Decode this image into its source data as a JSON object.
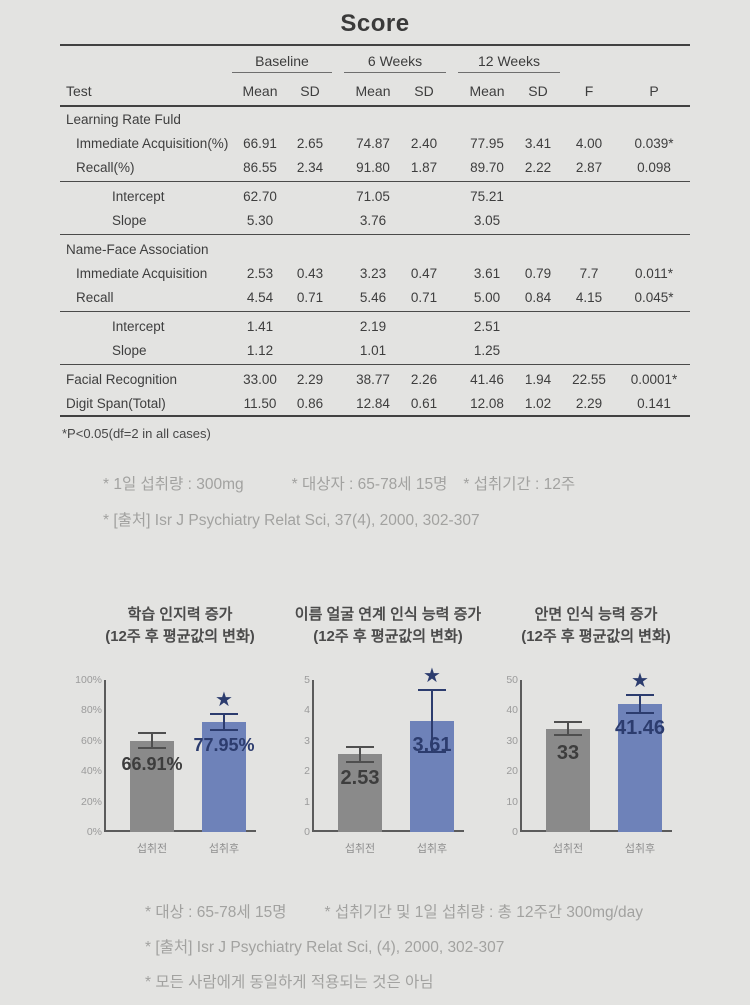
{
  "title": "Score",
  "colors": {
    "bar_gray": "#8a8a8a",
    "bar_blue": "#6e82b9",
    "navy": "#2c3c6e",
    "dark_gray": "#3d3d3d",
    "whisker_gray": "#4f4f4f"
  },
  "table": {
    "groups": [
      "Baseline",
      "6 Weeks",
      "12 Weeks"
    ],
    "headers": {
      "test": "Test",
      "mean": "Mean",
      "sd": "SD",
      "f": "F",
      "p": "P"
    },
    "footnote": "*P<0.05(df=2 in all cases)",
    "rows": [
      {
        "type": "section",
        "label": "Learning Rate Fuld"
      },
      {
        "type": "data",
        "label": "Immediate Acquisition(%)",
        "cells": [
          "66.91",
          "2.65",
          "74.87",
          "2.40",
          "77.95",
          "3.41",
          "4.00",
          "0.039*"
        ]
      },
      {
        "type": "data",
        "label": "Recall(%)",
        "cells": [
          "86.55",
          "2.34",
          "91.80",
          "1.87",
          "89.70",
          "2.22",
          "2.87",
          "0.098"
        ]
      },
      {
        "type": "rule"
      },
      {
        "type": "sub",
        "label": "Intercept",
        "cells": [
          "62.70",
          "",
          "71.05",
          "",
          "75.21",
          "",
          "",
          ""
        ]
      },
      {
        "type": "sub",
        "label": "Slope",
        "cells": [
          "5.30",
          "",
          "3.76",
          "",
          "3.05",
          "",
          "",
          ""
        ]
      },
      {
        "type": "rule"
      },
      {
        "type": "section",
        "label": "Name-Face Association"
      },
      {
        "type": "data",
        "label": "Immediate Acquisition",
        "cells": [
          "2.53",
          "0.43",
          "3.23",
          "0.47",
          "3.61",
          "0.79",
          "7.7",
          "0.011*"
        ]
      },
      {
        "type": "data",
        "label": "Recall",
        "cells": [
          "4.54",
          "0.71",
          "5.46",
          "0.71",
          "5.00",
          "0.84",
          "4.15",
          "0.045*"
        ]
      },
      {
        "type": "rule"
      },
      {
        "type": "sub",
        "label": "Intercept",
        "cells": [
          "1.41",
          "",
          "2.19",
          "",
          "2.51",
          "",
          "",
          ""
        ]
      },
      {
        "type": "sub",
        "label": "Slope",
        "cells": [
          "1.12",
          "",
          "1.01",
          "",
          "1.25",
          "",
          "",
          ""
        ]
      },
      {
        "type": "rule"
      },
      {
        "type": "data",
        "flush": true,
        "label": "Facial Recognition",
        "cells": [
          "33.00",
          "2.29",
          "38.77",
          "2.26",
          "41.46",
          "1.94",
          "22.55",
          "0.0001*"
        ]
      },
      {
        "type": "data",
        "flush": true,
        "label": "Digit Span(Total)",
        "cells": [
          "11.50",
          "0.86",
          "12.84",
          "0.61",
          "12.08",
          "1.02",
          "2.29",
          "0.141"
        ]
      }
    ]
  },
  "notes_mid": {
    "items": [
      "* 1일 섭취량 : 300mg",
      "* 대상자 : 65-78세 15명",
      "* 섭취기간 : 12주"
    ],
    "source": "* [출처] Isr J Psychiatry Relat Sci, 37(4), 2000, 302-307"
  },
  "notes_bottom": {
    "line1_items": [
      "* 대상 : 65-78세 15명",
      "* 섭취기간 및 1일 섭취량 : 총 12주간 300mg/day"
    ],
    "lines": [
      "* [출처] Isr J Psychiatry Relat Sci, (4), 2000, 302-307",
      "* 모든 사람에게 동일하게 적용되는 것은 아님"
    ]
  },
  "chart_data": [
    {
      "type": "bar",
      "title": "학습 인지력 증가",
      "subtitle": "(12주 후 평균값의 변화)",
      "categories": [
        "섭취전",
        "섭취후"
      ],
      "values": [
        66.91,
        77.95
      ],
      "value_labels": [
        "66.91%",
        "77.95%"
      ],
      "errors": [
        5.5,
        6
      ],
      "ylim": [
        0,
        100
      ],
      "ytick_labels": [
        "0%",
        "20%",
        "40%",
        "60%",
        "80%",
        "100%"
      ],
      "bar_colors": [
        "#8a8a8a",
        "#6e82b9"
      ],
      "whisker_colors": [
        "#4f4f4f",
        "#2c3c6e"
      ],
      "label_colors": [
        "#3d3d3d",
        "#2c3c6e"
      ],
      "star_on": [
        false,
        true
      ],
      "render_heights": [
        60,
        72.5
      ],
      "legend": "none",
      "grid": false
    },
    {
      "type": "bar",
      "title": "이름 얼굴 연계 인식 능력 증가",
      "subtitle": "(12주 후 평균값의 변화)",
      "categories": [
        "섭취전",
        "섭취후"
      ],
      "values": [
        2.53,
        3.61
      ],
      "value_labels": [
        "2.53",
        "3.61"
      ],
      "errors": [
        0.27,
        1.05
      ],
      "ylim": [
        0,
        5
      ],
      "ytick_labels": [
        "0",
        "1",
        "2",
        "3",
        "4",
        "5"
      ],
      "bar_colors": [
        "#8a8a8a",
        "#6e82b9"
      ],
      "whisker_colors": [
        "#4f4f4f",
        "#2c3c6e"
      ],
      "label_colors": [
        "#3d3d3d",
        "#2c3c6e"
      ],
      "star_on": [
        false,
        true
      ],
      "render_heights": [
        2.55,
        3.65
      ],
      "legend": "none",
      "grid": false
    },
    {
      "type": "bar",
      "title": "안면 인식 능력 증가",
      "subtitle": "(12주 후 평균값의 변화)",
      "categories": [
        "섭취전",
        "섭취후"
      ],
      "values": [
        33,
        41.46
      ],
      "value_labels": [
        "33",
        "41.46"
      ],
      "errors": [
        2.5,
        3.3
      ],
      "ylim": [
        0,
        50
      ],
      "ytick_labels": [
        "0",
        "10",
        "20",
        "30",
        "40",
        "50"
      ],
      "bar_colors": [
        "#8a8a8a",
        "#6e82b9"
      ],
      "whisker_colors": [
        "#4f4f4f",
        "#2c3c6e"
      ],
      "label_colors": [
        "#3d3d3d",
        "#2c3c6e"
      ],
      "star_on": [
        false,
        true
      ],
      "render_heights": [
        34,
        42
      ],
      "legend": "none",
      "grid": false
    }
  ]
}
